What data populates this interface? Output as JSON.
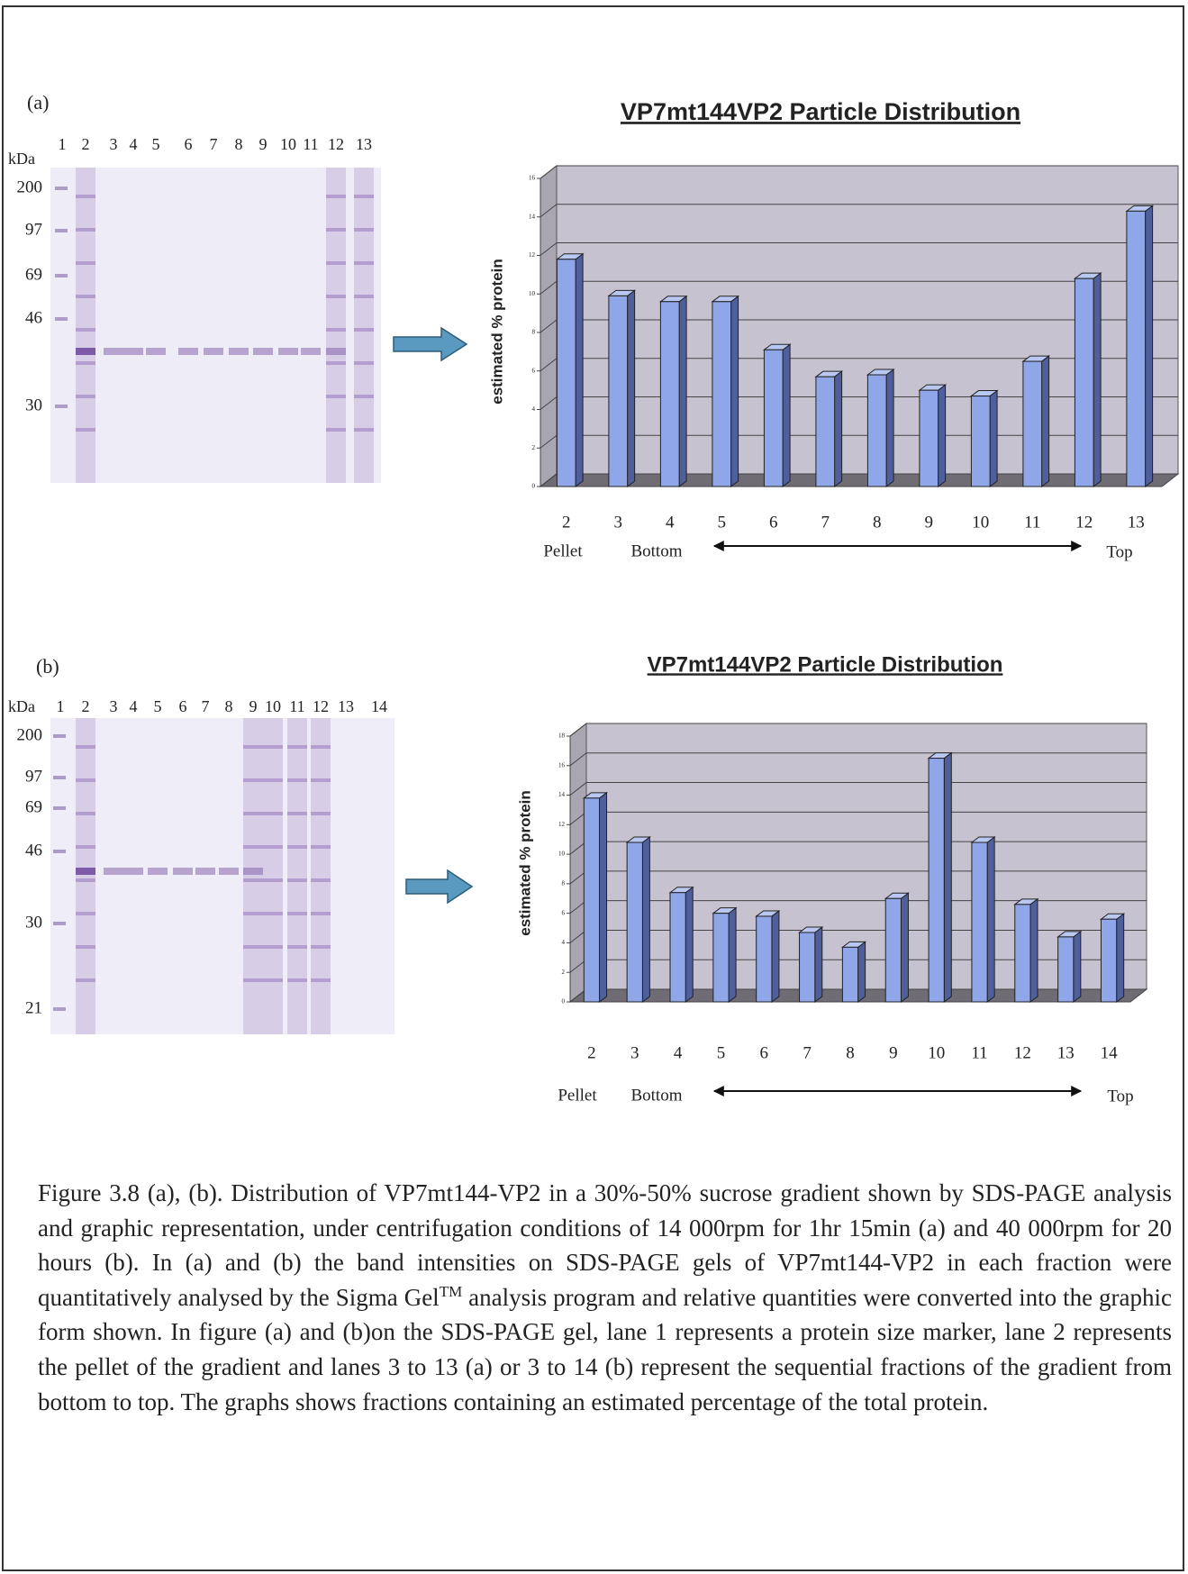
{
  "panels": [
    {
      "label": "(a)",
      "unit": "kDa",
      "lanes": [
        "1",
        "2",
        "3",
        "4",
        "5",
        "6",
        "7",
        "8",
        "9",
        "10",
        "11",
        "12",
        "13"
      ],
      "markers": [
        "200",
        "97",
        "69",
        "46",
        "30"
      ]
    },
    {
      "label": "(b)",
      "unit": "kDa",
      "lanes": [
        "1",
        "2",
        "3",
        "4",
        "5",
        "6",
        "7",
        "8",
        "9",
        "10",
        "11",
        "12",
        "13",
        "14"
      ],
      "markers": [
        "200",
        "97",
        "69",
        "46",
        "30",
        "21"
      ]
    }
  ],
  "chart_data": [
    {
      "type": "bar",
      "title": "VP7mt144VP2 Particle Distribution",
      "y_label": "estimated % protein",
      "categories": [
        "2",
        "3",
        "4",
        "5",
        "6",
        "7",
        "8",
        "9",
        "10",
        "11",
        "12",
        "13"
      ],
      "values": [
        11.8,
        9.9,
        9.6,
        9.6,
        7.1,
        5.7,
        5.8,
        5.0,
        4.7,
        6.5,
        10.8,
        14.3
      ],
      "color": "#8fa6e8",
      "ylim": [
        0,
        16
      ],
      "yticks": [
        0,
        2,
        4,
        6,
        8,
        10,
        12,
        14,
        16
      ],
      "grid": true,
      "annotations": [
        "Pellet",
        "Bottom",
        "Top"
      ]
    },
    {
      "type": "bar",
      "title": "VP7mt144VP2 Particle Distribution",
      "y_label": "estimated % protein",
      "categories": [
        "2",
        "3",
        "4",
        "5",
        "6",
        "7",
        "8",
        "9",
        "10",
        "11",
        "12",
        "13",
        "14"
      ],
      "values": [
        13.8,
        10.8,
        7.4,
        6.0,
        5.8,
        4.7,
        3.7,
        7.0,
        16.5,
        10.8,
        6.6,
        4.4,
        5.6
      ],
      "color": "#8fa6e8",
      "ylim": [
        0,
        18
      ],
      "yticks": [
        0,
        2,
        4,
        6,
        8,
        10,
        12,
        14,
        16,
        18
      ],
      "grid": true,
      "annotations": [
        "Pellet",
        "Bottom",
        "Top"
      ]
    }
  ],
  "caption": {
    "text": "Figure 3.8 (a), (b). Distribution of VP7mt144-VP2 in a 30%-50% sucrose gradient shown by SDS-PAGE analysis and graphic representation, under centrifugation conditions of 14 000rpm for 1hr 15min (a) and 40 000rpm for 20 hours (b). In (a) and (b) the band intensities on SDS-PAGE gels of VP7mt144-VP2 in each fraction were quantitatively analysed by the Sigma Gel",
    "superscript": "TM",
    "text_end": " analysis program and relative quantities were converted into the graphic form shown. In figure (a) and (b)on the SDS-PAGE gel, lane 1 represents a protein size marker, lane 2 represents the pellet of the gradient and lanes 3 to 13 (a) or 3 to 14 (b) represent the sequential fractions of the gradient from bottom to top. The graphs shows fractions containing an estimated percentage of the total protein."
  }
}
